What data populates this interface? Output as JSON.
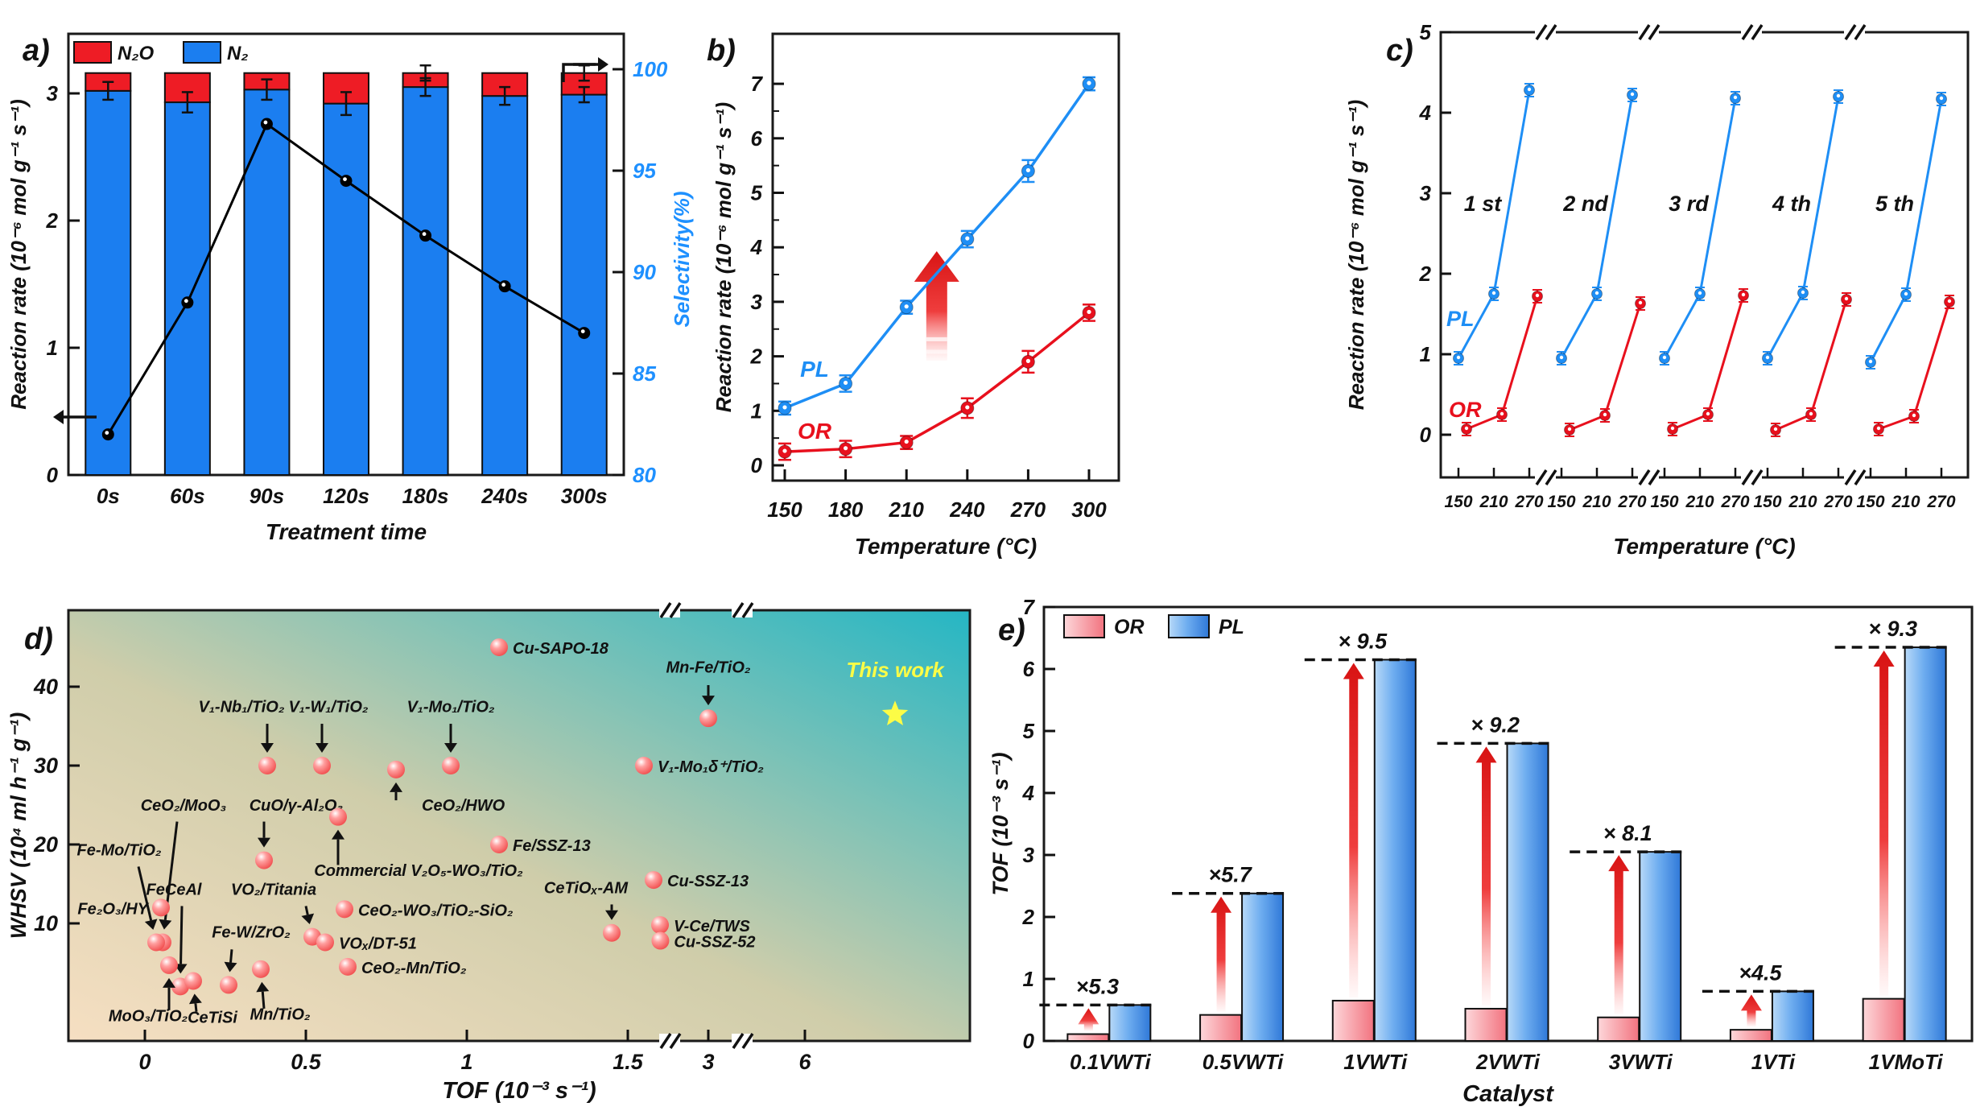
{
  "figure_name": "catalyst-performance-figure",
  "panel_labels": {
    "a": "a)",
    "b": "b)",
    "c": "c)",
    "d": "d)",
    "e": "e)"
  },
  "chart_data": [
    {
      "panel": "a)",
      "type": "bar+line",
      "xlabel": "Treatment time",
      "ylabel_left": "Reaction rate (10⁻⁶ mol g⁻¹ s⁻¹)",
      "ylabel_right": "Selectivity(%)",
      "categories": [
        "0s",
        "60s",
        "90s",
        "120s",
        "180s",
        "240s",
        "300s"
      ],
      "yticks_left": [
        "0",
        "1",
        "2",
        "3"
      ],
      "yticks_right": [
        "80",
        "85",
        "90",
        "95",
        "100"
      ],
      "ylim_left": [
        0,
        3.47
      ],
      "ylim_right": [
        80,
        101.7
      ],
      "legend": [
        {
          "label": "N₂O",
          "color": "#ee1c25"
        },
        {
          "label": "N₂",
          "color": "#1b7ef0"
        }
      ],
      "bars": {
        "N2": [
          3.02,
          2.93,
          3.03,
          2.92,
          3.05,
          2.98,
          2.99
        ],
        "N2O": [
          0.14,
          0.23,
          0.13,
          0.24,
          0.11,
          0.18,
          0.17
        ],
        "err": [
          0.07,
          0.08,
          0.08,
          0.09,
          0.07,
          0.07,
          0.06
        ],
        "err_total_idx": [
          4,
          6
        ],
        "err_total": 0.06
      },
      "line": {
        "name": "Selectivity",
        "color": "#000000",
        "values": [
          82,
          88.5,
          97.3,
          94.5,
          91.8,
          89.3,
          87
        ]
      }
    },
    {
      "panel": "b)",
      "type": "line",
      "xlabel": "Temperature (°C)",
      "ylabel": "Reaction rate (10⁻⁶ mol g⁻¹ s⁻¹)",
      "x": [
        150,
        180,
        210,
        240,
        270,
        300
      ],
      "yticks": [
        "0",
        "1",
        "2",
        "3",
        "4",
        "5",
        "6",
        "7"
      ],
      "ylim": [
        0,
        7.9
      ],
      "series": [
        {
          "name": "PL",
          "color": "#1e8ef5",
          "values": [
            1.05,
            1.5,
            2.9,
            4.15,
            5.4,
            7.0
          ],
          "err": [
            0.12,
            0.15,
            0.12,
            0.15,
            0.2,
            0.12
          ]
        },
        {
          "name": "OR",
          "color": "#e8101d",
          "values": [
            0.25,
            0.3,
            0.42,
            1.05,
            1.9,
            2.8
          ],
          "err": [
            0.15,
            0.15,
            0.12,
            0.18,
            0.2,
            0.15
          ]
        }
      ],
      "annotation": {
        "type": "red-up-arrow",
        "x": 240,
        "y_from": 1.92,
        "y_to": 3.93
      }
    },
    {
      "panel": "c)",
      "type": "line-cycles",
      "xlabel": "Temperature (°C)",
      "ylabel": "Reaction rate (10⁻⁶ mol g⁻¹ s⁻¹)",
      "cycle_labels": [
        "1 st",
        "2 nd",
        "3 rd",
        "4 th",
        "5 th"
      ],
      "x_per_cycle": [
        "150",
        "210",
        "270"
      ],
      "yticks": [
        "0",
        "1",
        "2",
        "3",
        "4",
        "5"
      ],
      "ylim": [
        0,
        5
      ],
      "series": [
        {
          "name": "PL",
          "color": "#1e8ef5",
          "cycles": [
            [
              0.95,
              1.75,
              4.28
            ],
            [
              0.95,
              1.75,
              4.22
            ],
            [
              0.95,
              1.75,
              4.18
            ],
            [
              0.95,
              1.76,
              4.2
            ],
            [
              0.9,
              1.74,
              4.17
            ]
          ]
        },
        {
          "name": "OR",
          "color": "#e8101d",
          "cycles": [
            [
              0.07,
              0.25,
              1.72
            ],
            [
              0.06,
              0.24,
              1.63
            ],
            [
              0.07,
              0.25,
              1.73
            ],
            [
              0.06,
              0.25,
              1.68
            ],
            [
              0.07,
              0.23,
              1.65
            ]
          ]
        }
      ]
    },
    {
      "panel": "d)",
      "type": "scatter",
      "xlabel": "TOF (10⁻³ s⁻¹)",
      "ylabel": "WHSV (10⁴ ml h⁻¹ g⁻¹)",
      "xticks": [
        "0",
        "0.5",
        "1",
        "1.5",
        "3",
        "6"
      ],
      "xtick_values": [
        0,
        0.5,
        1,
        1.5,
        3,
        6
      ],
      "yticks": [
        "10",
        "20",
        "30",
        "40"
      ],
      "marker_color": "#ef4444",
      "background": {
        "bottom_left": "#f6dfc2",
        "mid": "#cfcdaa",
        "top_right": "#25b6c4"
      },
      "points": [
        {
          "label": "Cu-SAPO-18",
          "tof": 1.1,
          "whsv": 45,
          "placement": "right"
        },
        {
          "label": "Mn-Fe/TiO₂",
          "tof": 3.0,
          "whsv": 36,
          "lp": [
            3.0,
            41.8
          ],
          "anchor": "middle",
          "arrow_from": [
            3.0,
            40.2
          ]
        },
        {
          "label": "This work",
          "tof": 8.8,
          "whsv": 36.5,
          "star": true,
          "color": "#fcfc46",
          "lp": [
            8.8,
            41.2
          ],
          "anchor": "middle"
        },
        {
          "label": "V₁-Nb₁/TiO₂",
          "tof": 0.38,
          "whsv": 30,
          "lp": [
            0.3,
            36.8
          ],
          "anchor": "middle",
          "arrow_from": [
            0.38,
            35.3
          ]
        },
        {
          "label": "V₁-W₁/TiO₂",
          "tof": 0.55,
          "whsv": 30,
          "lp": [
            0.57,
            36.8
          ],
          "anchor": "middle",
          "arrow_from": [
            0.55,
            35.3
          ]
        },
        {
          "label": "V₁-Mo₁/TiO₂",
          "tof": 0.95,
          "whsv": 30,
          "lp": [
            0.95,
            36.8
          ],
          "anchor": "middle",
          "arrow_from": [
            0.95,
            35.3
          ]
        },
        {
          "label": "CeO₂/HWO",
          "tof": 0.78,
          "whsv": 29.5,
          "lp": [
            0.86,
            24.3
          ],
          "anchor": "start",
          "arrow_from": [
            0.78,
            25.6
          ]
        },
        {
          "label": "V₁-Mo₁δ⁺/TiO₂",
          "tof": 1.55,
          "whsv": 30,
          "placement": "right"
        },
        {
          "label": "Fe/SSZ-13",
          "tof": 1.1,
          "whsv": 20,
          "placement": "right"
        },
        {
          "label": "CuO/γ-Al₂O₃",
          "tof": 0.37,
          "whsv": 18,
          "lp": [
            0.47,
            24.3
          ],
          "anchor": "middle",
          "arrow_from": [
            0.37,
            22.9
          ]
        },
        {
          "label": "Commercial V₂O₅-WO₃/TiO₂",
          "tof": 0.6,
          "whsv": 23.5,
          "lp": [
            0.85,
            16.0
          ],
          "anchor": "middle",
          "arrow_from": [
            0.6,
            17.4
          ]
        },
        {
          "label": "CeO₂/MoO₃",
          "tof": 0.055,
          "whsv": 7.6,
          "lp": [
            0.12,
            24.3
          ],
          "anchor": "middle",
          "arrow_from": [
            0.1,
            22.9
          ]
        },
        {
          "label": "Fe-Mo/TiO₂",
          "tof": 0.035,
          "whsv": 7.6,
          "lp": [
            -0.08,
            18.6
          ],
          "anchor": "middle",
          "arrow_from": [
            -0.02,
            17.2
          ]
        },
        {
          "label": "Fe₂O₃/HY",
          "tof": 0.05,
          "whsv": 12,
          "placement": "left"
        },
        {
          "label": "FeCeAl",
          "tof": 0.11,
          "whsv": 2.0,
          "lp": [
            0.09,
            13.6
          ],
          "anchor": "middle",
          "arrow_from": [
            0.115,
            12.2
          ]
        },
        {
          "label": "VO₂/Titania",
          "tof": 0.52,
          "whsv": 8.3,
          "lp": [
            0.4,
            13.6
          ],
          "anchor": "middle",
          "arrow_from": [
            0.5,
            12.2
          ]
        },
        {
          "label": "VOₓ/DT-51",
          "tof": 0.56,
          "whsv": 7.6,
          "placement": "right"
        },
        {
          "label": "CeO₂-WO₃/TiO₂-SiO₂",
          "tof": 0.62,
          "whsv": 11.8,
          "placement": "right"
        },
        {
          "label": "CeO₂-Mn/TiO₂",
          "tof": 0.63,
          "whsv": 4.5,
          "placement": "right"
        },
        {
          "label": "Fe-W/ZrO₂",
          "tof": 0.26,
          "whsv": 2.2,
          "lp": [
            0.33,
            8.2
          ],
          "anchor": "middle",
          "arrow_from": [
            0.27,
            6.7
          ]
        },
        {
          "label": "MoO₃/TiO₂",
          "tof": 0.075,
          "whsv": 4.7,
          "lp": [
            0.01,
            -2.4
          ],
          "anchor": "middle",
          "arrow_from": [
            0.075,
            -1.0
          ]
        },
        {
          "label": "CeTiSi",
          "tof": 0.15,
          "whsv": 2.7,
          "lp": [
            0.21,
            -2.6
          ],
          "anchor": "middle",
          "arrow_from": [
            0.16,
            -1.2
          ]
        },
        {
          "label": "Mn/TiO₂",
          "tof": 0.36,
          "whsv": 4.2,
          "lp": [
            0.42,
            -2.2
          ],
          "anchor": "middle",
          "arrow_from": [
            0.37,
            -0.8
          ]
        },
        {
          "label": "CeTiOₓ-AM",
          "tof": 1.45,
          "whsv": 8.8,
          "lp": [
            1.37,
            13.8
          ],
          "anchor": "middle",
          "arrow_from": [
            1.45,
            12.4
          ]
        },
        {
          "label": "Cu-SSZ-13",
          "tof": 1.58,
          "whsv": 15.5,
          "placement": "right"
        },
        {
          "label": "V-Ce/TWS",
          "tof": 1.6,
          "whsv": 9.8,
          "placement": "right"
        },
        {
          "label": "Cu-SSZ-52",
          "tof": 1.61,
          "whsv": 7.8,
          "placement": "right"
        }
      ]
    },
    {
      "panel": "e)",
      "type": "bar",
      "xlabel": "Catalyst",
      "ylabel": "TOF (10⁻³ s⁻¹)",
      "categories": [
        "0.1VWTi",
        "0.5VWTi",
        "1VWTi",
        "2VWTi",
        "3VWTi",
        "1VTi",
        "1VMoTi"
      ],
      "yticks": [
        "0",
        "1",
        "2",
        "3",
        "4",
        "5",
        "6",
        "7"
      ],
      "ylim": [
        0,
        7
      ],
      "series": [
        {
          "name": "OR",
          "color_light": "#fdd7da",
          "color_dark": "#f2737f",
          "values": [
            0.11,
            0.42,
            0.65,
            0.52,
            0.38,
            0.18,
            0.68
          ]
        },
        {
          "name": "PL",
          "color_light": "#b8d9f8",
          "color_dark": "#2f78d8",
          "values": [
            0.58,
            2.38,
            6.15,
            4.8,
            3.05,
            0.8,
            6.35
          ]
        }
      ],
      "multipliers": [
        "×5.3",
        "×5.7",
        "× 9.5",
        "× 9.2",
        "× 8.1",
        "×4.5",
        "× 9.3"
      ]
    }
  ]
}
